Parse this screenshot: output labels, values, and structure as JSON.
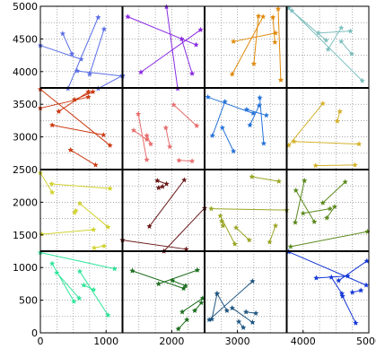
{
  "chart_data": {
    "type": "line",
    "title": "",
    "xlabel": "",
    "ylabel": "",
    "xlim": [
      0,
      5000
    ],
    "ylim": [
      0,
      5000
    ],
    "grid": "dotted",
    "grid_step": 250,
    "divider_lines": [
      1250,
      2500,
      3750
    ],
    "x_ticks": [
      {
        "value": 0,
        "label": "0"
      },
      {
        "value": 1000,
        "label": "1000"
      },
      {
        "value": 2000,
        "label": "2000"
      },
      {
        "value": 3000,
        "label": "3000"
      },
      {
        "value": 4000,
        "label": "4000"
      },
      {
        "value": 5000,
        "label": "5000"
      }
    ],
    "y_ticks": [
      {
        "value": 0,
        "label": "0"
      },
      {
        "value": 500,
        "label": "500"
      },
      {
        "value": 1000,
        "label": "1000"
      },
      {
        "value": 1500,
        "label": "1500"
      },
      {
        "value": 2000,
        "label": "2000"
      },
      {
        "value": 2500,
        "label": "2500"
      },
      {
        "value": 3000,
        "label": "3000"
      },
      {
        "value": 3500,
        "label": "3500"
      },
      {
        "value": 4000,
        "label": "4000"
      },
      {
        "value": 4500,
        "label": "4500"
      },
      {
        "value": 5000,
        "label": "5000"
      }
    ],
    "series": [
      {
        "color": "#5b6ee6",
        "marker": "star",
        "segments": [
          [
            [
              0,
              4400
            ],
            [
              620,
              4190
            ]
          ],
          [
            [
              340,
              4580
            ],
            [
              480,
              4270
            ]
          ],
          [
            [
              970,
              4650
            ],
            [
              750,
              3960
            ]
          ],
          [
            [
              880,
              4830
            ],
            [
              420,
              3740
            ]
          ],
          [
            [
              1250,
              3930
            ],
            [
              560,
              4010
            ]
          ],
          [
            [
              880,
              3740
            ],
            [
              1250,
              3940
            ]
          ]
        ]
      },
      {
        "color": "#8a2be2",
        "marker": "star",
        "segments": [
          [
            [
              1330,
              4840
            ],
            [
              2370,
              4410
            ]
          ],
          [
            [
              1920,
              4990
            ],
            [
              2090,
              3740
            ]
          ],
          [
            [
              1530,
              3990
            ],
            [
              2440,
              4640
            ]
          ],
          [
            [
              2150,
              4500
            ],
            [
              2310,
              3970
            ]
          ]
        ]
      },
      {
        "color": "#e08a0c",
        "marker": "star",
        "segments": [
          [
            [
              2920,
              3960
            ],
            [
              3390,
              4840
            ]
          ],
          [
            [
              2940,
              4460
            ],
            [
              3580,
              4590
            ]
          ],
          [
            [
              3540,
              4830
            ],
            [
              3570,
              4450
            ]
          ],
          [
            [
              3660,
              3870
            ],
            [
              3620,
              4960
            ]
          ],
          [
            [
              3320,
              4850
            ],
            [
              3250,
              4120
            ]
          ]
        ]
      },
      {
        "color": "#7fbfbf",
        "marker": "star",
        "segments": [
          [
            [
              3780,
              4970
            ],
            [
              4350,
              4480
            ]
          ],
          [
            [
              3830,
              4930
            ],
            [
              4900,
              3860
            ]
          ],
          [
            [
              4230,
              4590
            ],
            [
              4720,
              4620
            ]
          ],
          [
            [
              4380,
              4340
            ],
            [
              4580,
              4670
            ]
          ],
          [
            [
              4740,
              4270
            ],
            [
              4580,
              4460
            ]
          ]
        ]
      },
      {
        "color": "#cc3a12",
        "marker": "star",
        "segments": [
          [
            [
              0,
              3730
            ],
            [
              1060,
              2870
            ]
          ],
          [
            [
              180,
              3180
            ],
            [
              960,
              3030
            ]
          ],
          [
            [
              280,
              3390
            ],
            [
              730,
              3690
            ]
          ],
          [
            [
              0,
              3440
            ],
            [
              730,
              3610
            ]
          ],
          [
            [
              520,
              3570
            ],
            [
              800,
              3690
            ]
          ],
          [
            [
              460,
              2800
            ],
            [
              840,
              2570
            ]
          ]
        ]
      },
      {
        "color": "#e86d6d",
        "marker": "star",
        "segments": [
          [
            [
              1490,
              3350
            ],
            [
              1620,
              2650
            ]
          ],
          [
            [
              1620,
              3020
            ],
            [
              1680,
              2890
            ]
          ],
          [
            [
              1620,
              2960
            ],
            [
              1420,
              3100
            ]
          ],
          [
            [
              1910,
              3140
            ],
            [
              1970,
              2850
            ]
          ],
          [
            [
              2030,
              3490
            ],
            [
              2380,
              3170
            ]
          ],
          [
            [
              2110,
              2640
            ],
            [
              2310,
              2630
            ]
          ]
        ]
      },
      {
        "color": "#2673d8",
        "marker": "star",
        "segments": [
          [
            [
              2550,
              3610
            ],
            [
              3240,
              3360
            ]
          ],
          [
            [
              2810,
              3540
            ],
            [
              2620,
              3020
            ]
          ],
          [
            [
              2770,
              3140
            ],
            [
              2940,
              2780
            ]
          ],
          [
            [
              3140,
              3420
            ],
            [
              3440,
              3330
            ]
          ],
          [
            [
              3330,
              3480
            ],
            [
              3190,
              3180
            ]
          ],
          [
            [
              3340,
              3600
            ],
            [
              3400,
              2900
            ]
          ]
        ]
      },
      {
        "color": "#d4b22c",
        "marker": "star",
        "segments": [
          [
            [
              3780,
              2870
            ],
            [
              4300,
              3510
            ]
          ],
          [
            [
              3860,
              2930
            ],
            [
              4850,
              2890
            ]
          ],
          [
            [
              4190,
              2560
            ],
            [
              4790,
              2570
            ]
          ],
          [
            [
              4520,
              3240
            ],
            [
              4560,
              3390
            ]
          ]
        ]
      },
      {
        "color": "#d2d232",
        "marker": "star",
        "segments": [
          [
            [
              0,
              2450
            ],
            [
              180,
              2150
            ]
          ],
          [
            [
              170,
              2280
            ],
            [
              1060,
              2210
            ]
          ],
          [
            [
              20,
              1510
            ],
            [
              810,
              1580
            ]
          ],
          [
            [
              600,
              1980
            ],
            [
              1030,
              1620
            ]
          ],
          [
            [
              820,
              1300
            ],
            [
              970,
              1330
            ]
          ],
          [
            [
              520,
              1840
            ],
            [
              540,
              1870
            ]
          ]
        ]
      },
      {
        "color": "#6b1a1a",
        "marker": "star",
        "segments": [
          [
            [
              1660,
              1630
            ],
            [
              2190,
              2340
            ]
          ],
          [
            [
              1780,
              2330
            ],
            [
              1920,
              2280
            ]
          ],
          [
            [
              1800,
              2220
            ],
            [
              1860,
              2240
            ]
          ],
          [
            [
              1250,
              1420
            ],
            [
              2220,
              1280
            ]
          ],
          [
            [
              1880,
              1250
            ],
            [
              2500,
              1910
            ]
          ]
        ]
      },
      {
        "color": "#9aa624",
        "marker": "star",
        "segments": [
          [
            [
              2600,
              1900
            ],
            [
              3750,
              1880
            ]
          ],
          [
            [
              2740,
              1790
            ],
            [
              2960,
              1360
            ]
          ],
          [
            [
              2780,
              1640
            ],
            [
              2760,
              1710
            ]
          ],
          [
            [
              2980,
              1610
            ],
            [
              3180,
              1420
            ]
          ],
          [
            [
              3220,
              2390
            ],
            [
              3630,
              2320
            ]
          ],
          [
            [
              3490,
              1390
            ],
            [
              3580,
              1640
            ]
          ]
        ]
      },
      {
        "color": "#5c8a1e",
        "marker": "star",
        "segments": [
          [
            [
              3810,
              1320
            ],
            [
              4980,
              1550
            ]
          ],
          [
            [
              3880,
              1690
            ],
            [
              4020,
              2330
            ]
          ],
          [
            [
              3890,
              2180
            ],
            [
              4170,
              1700
            ]
          ],
          [
            [
              4000,
              1830
            ],
            [
              4410,
              1900
            ]
          ],
          [
            [
              4300,
              1990
            ],
            [
              4640,
              2310
            ]
          ],
          [
            [
              4360,
              1760
            ],
            [
              4480,
              1930
            ]
          ]
        ]
      },
      {
        "color": "#2ee59a",
        "marker": "star",
        "segments": [
          [
            [
              0,
              1230
            ],
            [
              1130,
              980
            ]
          ],
          [
            [
              180,
              1060
            ],
            [
              510,
              480
            ]
          ],
          [
            [
              250,
              920
            ],
            [
              590,
              530
            ]
          ],
          [
            [
              600,
              940
            ],
            [
              1030,
              270
            ]
          ],
          [
            [
              660,
              730
            ],
            [
              810,
              660
            ]
          ]
        ]
      },
      {
        "color": "#1c6e1e",
        "marker": "star",
        "segments": [
          [
            [
              1400,
              950
            ],
            [
              2180,
              680
            ]
          ],
          [
            [
              1800,
              750
            ],
            [
              2390,
              960
            ]
          ],
          [
            [
              2010,
              800
            ],
            [
              2210,
              720
            ]
          ],
          [
            [
              2160,
              320
            ],
            [
              2470,
              530
            ]
          ],
          [
            [
              2350,
              340
            ],
            [
              2450,
              460
            ]
          ],
          [
            [
              2100,
              60
            ],
            [
              2230,
              200
            ]
          ]
        ]
      },
      {
        "color": "#1f5580",
        "marker": "star",
        "segments": [
          [
            [
              2570,
              200
            ],
            [
              3230,
              790
            ]
          ],
          [
            [
              2610,
              210
            ],
            [
              2690,
              600
            ]
          ],
          [
            [
              2690,
              600
            ],
            [
              2840,
              340
            ]
          ],
          [
            [
              2920,
              380
            ],
            [
              3230,
              160
            ]
          ],
          [
            [
              3020,
              170
            ],
            [
              3090,
              80
            ]
          ],
          [
            [
              3130,
              320
            ],
            [
              3280,
              300
            ]
          ]
        ]
      },
      {
        "color": "#1437d6",
        "marker": "star",
        "segments": [
          [
            [
              3780,
              1240
            ],
            [
              4960,
              730
            ]
          ],
          [
            [
              4200,
              840
            ],
            [
              4680,
              870
            ]
          ],
          [
            [
              4430,
              850
            ],
            [
              4590,
              600
            ]
          ],
          [
            [
              4540,
              800
            ],
            [
              4970,
              1100
            ]
          ],
          [
            [
              4600,
              560
            ],
            [
              4800,
              150
            ]
          ],
          [
            [
              4750,
              620
            ],
            [
              4880,
              650
            ]
          ]
        ]
      }
    ]
  }
}
